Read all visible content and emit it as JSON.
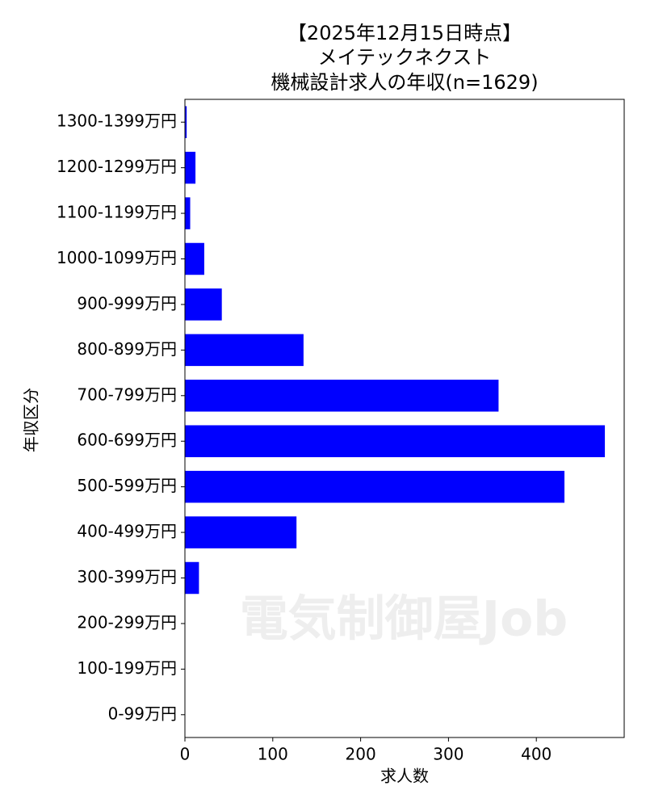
{
  "chart_data": {
    "type": "barh",
    "title": [
      "【2025年12月15日時点】",
      "メイテックネクスト",
      "機械設計求人の年収(n=1629)"
    ],
    "xlabel": "求人数",
    "ylabel": "年収区分",
    "watermark": "電気制御屋Job",
    "categories": [
      "0-99万円",
      "100-199万円",
      "200-299万円",
      "300-399万円",
      "400-499万円",
      "500-599万円",
      "600-699万円",
      "700-799万円",
      "800-899万円",
      "900-999万円",
      "1000-1099万円",
      "1100-1199万円",
      "1200-1299万円",
      "1300-1399万円"
    ],
    "values": [
      0,
      0,
      0,
      16,
      127,
      432,
      478,
      357,
      135,
      42,
      22,
      6,
      12,
      2
    ],
    "color": "#0000ff",
    "xlim": [
      0,
      500
    ],
    "xticks": [
      0,
      100,
      200,
      300,
      400
    ]
  }
}
